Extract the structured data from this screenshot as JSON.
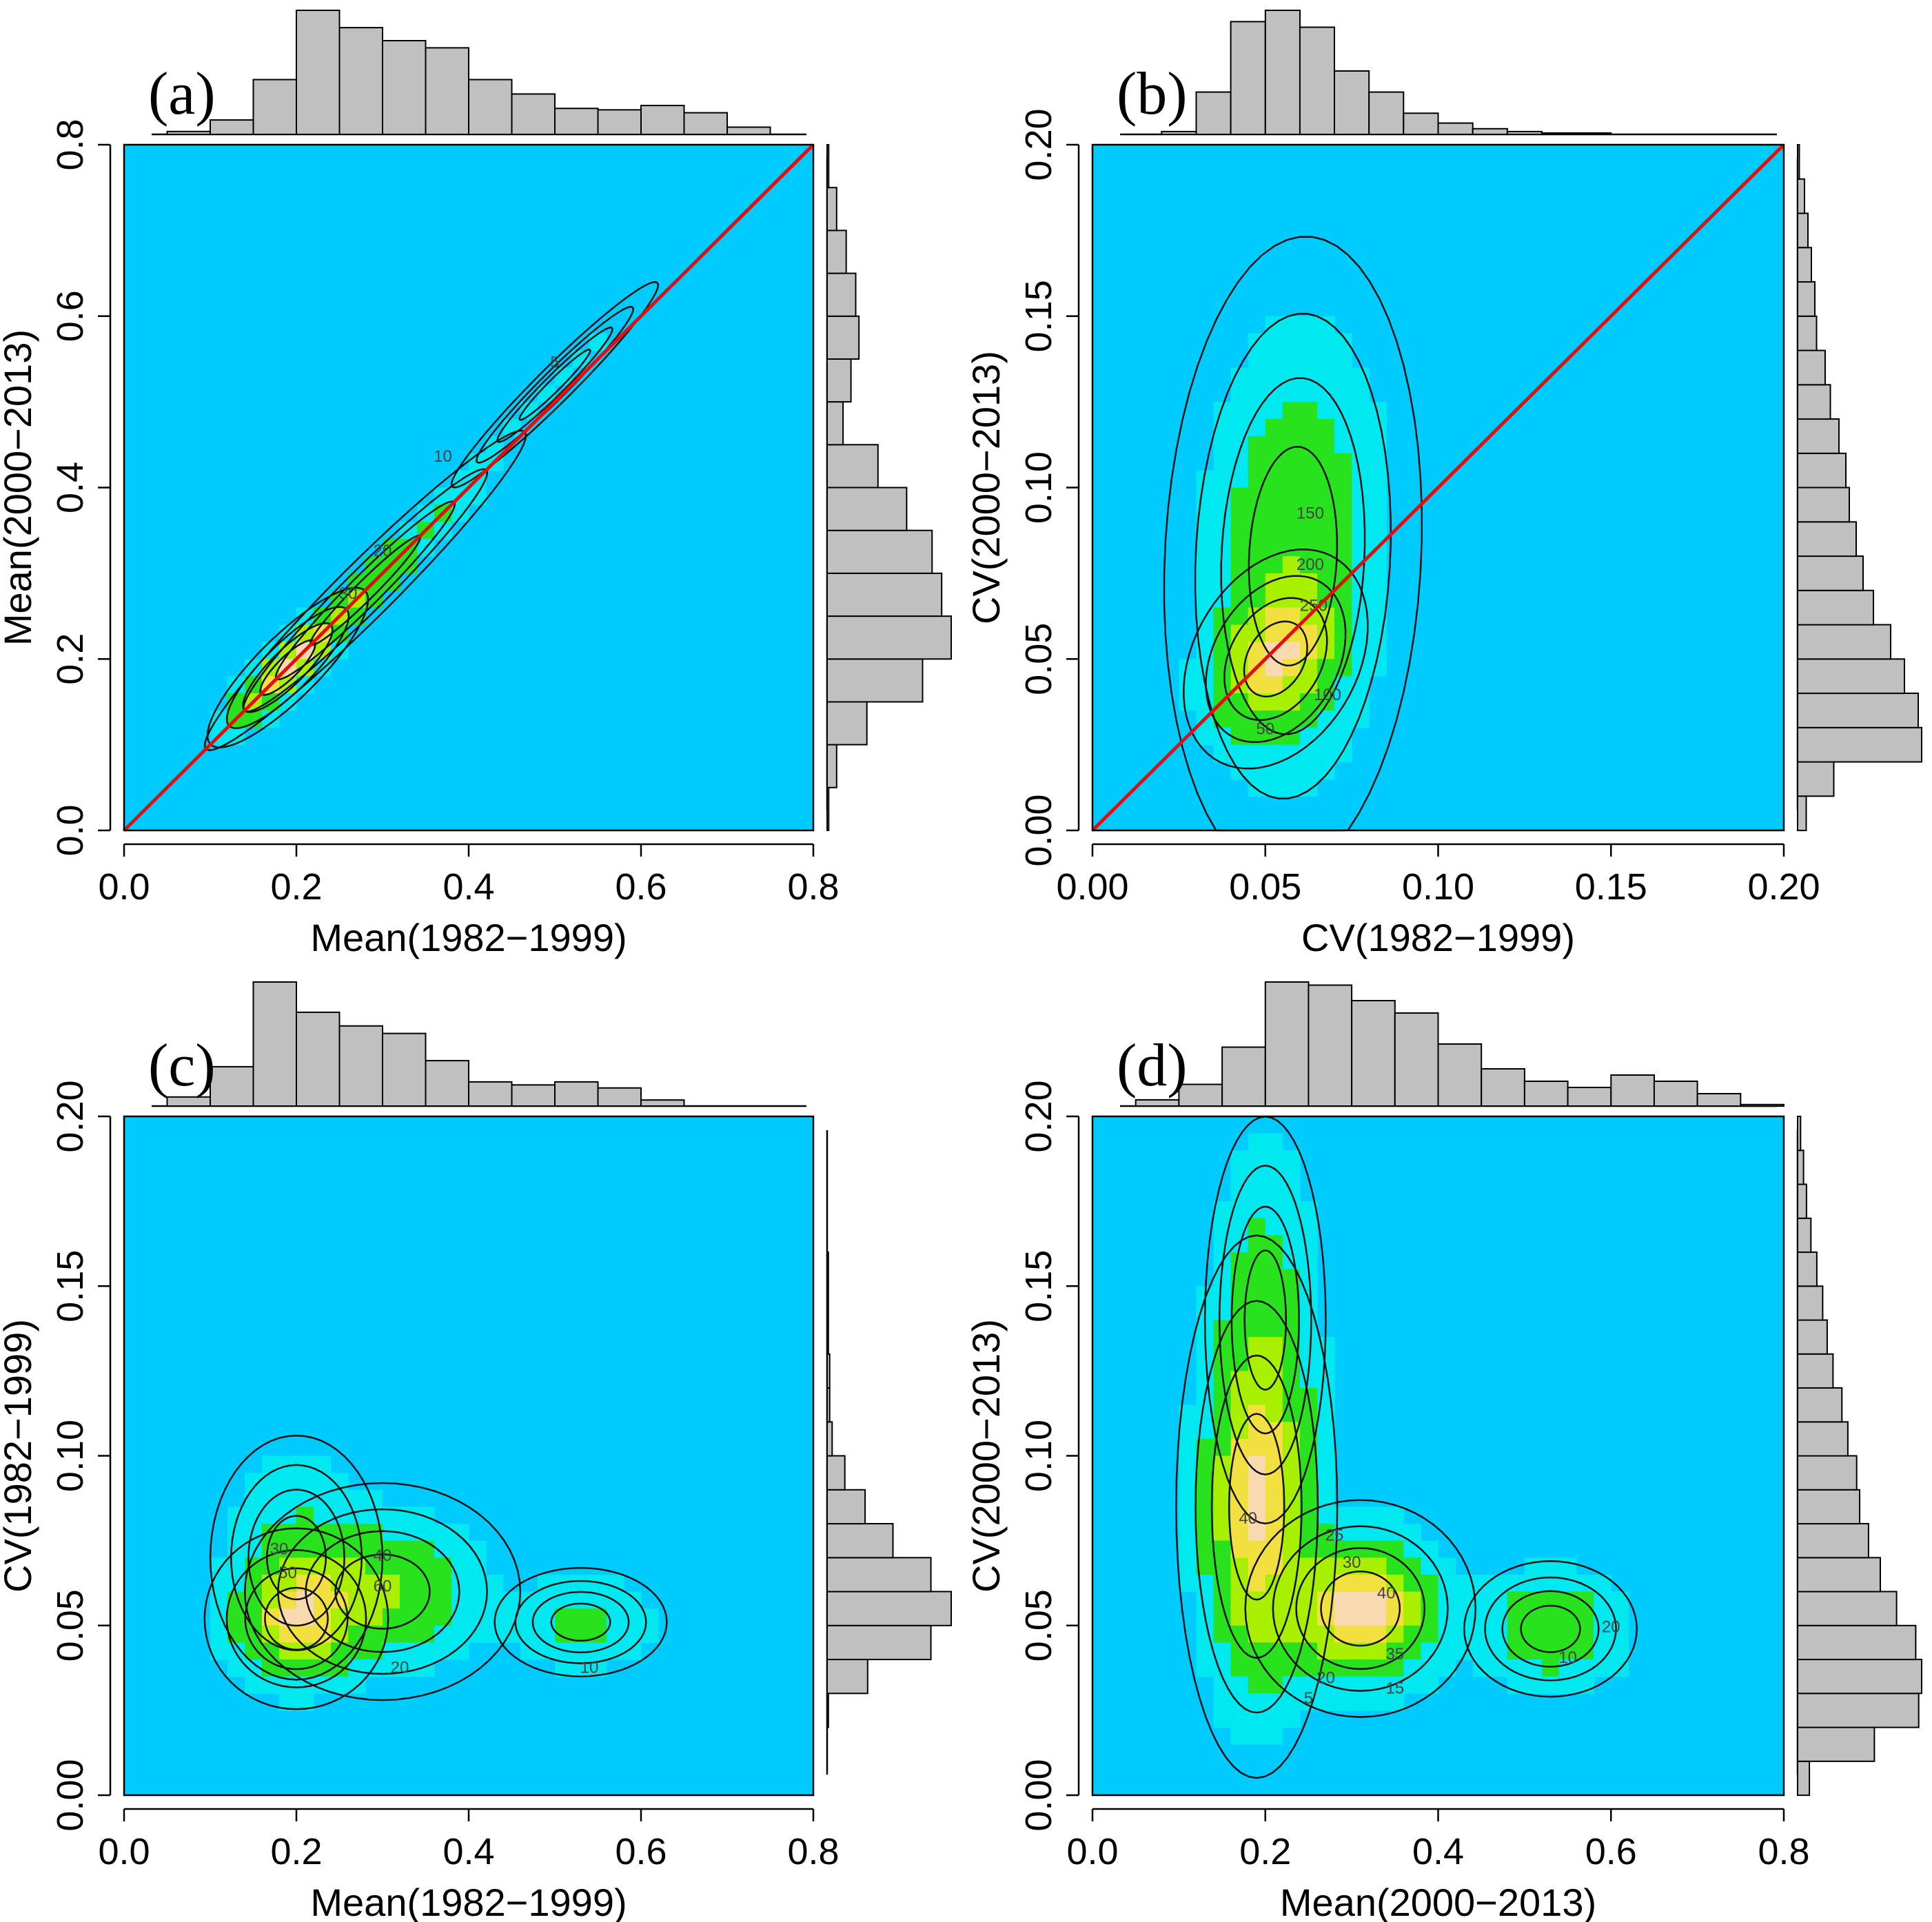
{
  "figure": {
    "description_colors": {
      "background_field": "#00cbff",
      "low_density": "#00e8f0",
      "mid_density": "#28e21e",
      "mid_high_density": "#a8f000",
      "high_density": "#f2e040",
      "peak_density": "#f8d9b0",
      "histogram_fill": "#c0c0c0",
      "identity_line": "#e01010"
    }
  },
  "chart_data": [
    {
      "id": "a",
      "type": "heatmap",
      "panel_label": "(a)",
      "xlabel": "Mean(1982−1999)",
      "ylabel": "Mean(2000−2013)",
      "xlim": [
        0,
        0.8
      ],
      "ylim": [
        0,
        0.8
      ],
      "xticks": [
        0.0,
        0.2,
        0.4,
        0.6,
        0.8
      ],
      "yticks": [
        0.0,
        0.2,
        0.4,
        0.6,
        0.8
      ],
      "xtick_labels": [
        "0.0",
        "0.2",
        "0.4",
        "0.6",
        "0.8"
      ],
      "ytick_labels": [
        "0.0",
        "0.2",
        "0.4",
        "0.6",
        "0.8"
      ],
      "identity_line": true,
      "density_field": {
        "comment": "ridge density approximated along the 1:1 line",
        "components": [
          {
            "cx": 0.19,
            "cy": 0.19,
            "sx": 0.035,
            "sy": 0.035,
            "corr": 0.85,
            "weight": 1.0
          },
          {
            "cx": 0.28,
            "cy": 0.28,
            "sx": 0.07,
            "sy": 0.07,
            "corr": 0.97,
            "weight": 0.55
          },
          {
            "cx": 0.5,
            "cy": 0.52,
            "sx": 0.06,
            "sy": 0.06,
            "corr": 0.97,
            "weight": 0.12
          }
        ]
      },
      "contour_labels": [
        {
          "x": 0.5,
          "y": 0.54,
          "text": "5"
        },
        {
          "x": 0.37,
          "y": 0.43,
          "text": "10"
        },
        {
          "x": 0.3,
          "y": 0.32,
          "text": "20"
        },
        {
          "x": 0.26,
          "y": 0.27,
          "text": "30"
        }
      ],
      "top_histogram": {
        "bin_edges": [
          0.0,
          0.05,
          0.1,
          0.15,
          0.2,
          0.25,
          0.3,
          0.35,
          0.4,
          0.45,
          0.5,
          0.55,
          0.6,
          0.65,
          0.7,
          0.75,
          0.8
        ],
        "counts": [
          0,
          2,
          10,
          38,
          86,
          74,
          65,
          60,
          38,
          28,
          18,
          17,
          20,
          15,
          5,
          0
        ]
      },
      "right_histogram": {
        "bin_edges": [
          0.0,
          0.05,
          0.1,
          0.15,
          0.2,
          0.25,
          0.3,
          0.35,
          0.4,
          0.45,
          0.5,
          0.55,
          0.6,
          0.65,
          0.7,
          0.75,
          0.8
        ],
        "counts": [
          1,
          6,
          25,
          60,
          78,
          72,
          66,
          50,
          32,
          10,
          15,
          20,
          18,
          12,
          6,
          1
        ]
      }
    },
    {
      "id": "b",
      "type": "heatmap",
      "panel_label": "(b)",
      "xlabel": "CV(1982−1999)",
      "ylabel": "CV(2000−2013)",
      "xlim": [
        0,
        0.2
      ],
      "ylim": [
        0,
        0.2
      ],
      "xticks": [
        0.0,
        0.05,
        0.1,
        0.15,
        0.2
      ],
      "yticks": [
        0.0,
        0.05,
        0.1,
        0.15,
        0.2
      ],
      "xtick_labels": [
        "0.00",
        "0.05",
        "0.10",
        "0.15",
        "0.20"
      ],
      "ytick_labels": [
        "0.00",
        "0.05",
        "0.10",
        "0.15",
        "0.20"
      ],
      "identity_line": true,
      "density_field": {
        "components": [
          {
            "cx": 0.053,
            "cy": 0.05,
            "sx": 0.01,
            "sy": 0.012,
            "corr": 0.3,
            "weight": 1.0
          },
          {
            "cx": 0.058,
            "cy": 0.08,
            "sx": 0.014,
            "sy": 0.035,
            "corr": 0.1,
            "weight": 0.55
          }
        ]
      },
      "contour_labels": [
        {
          "x": 0.05,
          "y": 0.028,
          "text": "50"
        },
        {
          "x": 0.068,
          "y": 0.038,
          "text": "100"
        },
        {
          "x": 0.063,
          "y": 0.091,
          "text": "150"
        },
        {
          "x": 0.063,
          "y": 0.076,
          "text": "200"
        },
        {
          "x": 0.064,
          "y": 0.064,
          "text": "250"
        }
      ],
      "top_histogram": {
        "bin_edges": [
          0.0,
          0.01,
          0.02,
          0.03,
          0.04,
          0.05,
          0.06,
          0.07,
          0.08,
          0.09,
          0.1,
          0.11,
          0.12,
          0.13,
          0.14,
          0.15,
          0.16,
          0.17,
          0.18,
          0.19,
          0.2
        ],
        "counts": [
          0,
          0,
          2,
          30,
          80,
          88,
          76,
          45,
          30,
          15,
          8,
          4,
          2,
          1,
          1,
          0,
          0,
          0,
          0,
          0
        ]
      },
      "right_histogram": {
        "bin_edges": [
          0.0,
          0.01,
          0.02,
          0.03,
          0.04,
          0.05,
          0.06,
          0.07,
          0.08,
          0.09,
          0.1,
          0.11,
          0.12,
          0.13,
          0.14,
          0.15,
          0.16,
          0.17,
          0.18,
          0.19,
          0.2
        ],
        "counts": [
          5,
          21,
          72,
          70,
          62,
          54,
          44,
          38,
          34,
          30,
          28,
          24,
          19,
          16,
          11,
          10,
          8,
          6,
          4,
          1
        ]
      }
    },
    {
      "id": "c",
      "type": "heatmap",
      "panel_label": "(c)",
      "xlabel": "Mean(1982−1999)",
      "ylabel": "CV(1982−1999)",
      "xlim": [
        0,
        0.8
      ],
      "ylim": [
        0,
        0.2
      ],
      "xticks": [
        0.0,
        0.2,
        0.4,
        0.6,
        0.8
      ],
      "yticks": [
        0.0,
        0.05,
        0.1,
        0.15,
        0.2
      ],
      "xtick_labels": [
        "0.0",
        "0.2",
        "0.4",
        "0.6",
        "0.8"
      ],
      "ytick_labels": [
        "0.00",
        "0.05",
        "0.10",
        "0.15",
        "0.20"
      ],
      "identity_line": false,
      "density_field": {
        "components": [
          {
            "cx": 0.2,
            "cy": 0.052,
            "sx": 0.04,
            "sy": 0.01,
            "corr": 0.0,
            "weight": 1.0
          },
          {
            "cx": 0.3,
            "cy": 0.06,
            "sx": 0.06,
            "sy": 0.012,
            "corr": 0.0,
            "weight": 0.6
          },
          {
            "cx": 0.53,
            "cy": 0.051,
            "sx": 0.05,
            "sy": 0.008,
            "corr": 0.0,
            "weight": 0.3
          },
          {
            "cx": 0.2,
            "cy": 0.07,
            "sx": 0.05,
            "sy": 0.018,
            "corr": 0.0,
            "weight": 0.25
          }
        ]
      },
      "contour_labels": [
        {
          "x": 0.32,
          "y": 0.036,
          "text": "20"
        },
        {
          "x": 0.18,
          "y": 0.071,
          "text": "30"
        },
        {
          "x": 0.3,
          "y": 0.069,
          "text": "40"
        },
        {
          "x": 0.19,
          "y": 0.064,
          "text": "50"
        },
        {
          "x": 0.3,
          "y": 0.06,
          "text": "60"
        },
        {
          "x": 0.54,
          "y": 0.036,
          "text": "10"
        }
      ],
      "top_histogram": {
        "bin_edges": [
          0.0,
          0.05,
          0.1,
          0.15,
          0.2,
          0.25,
          0.3,
          0.35,
          0.4,
          0.45,
          0.5,
          0.55,
          0.6,
          0.65,
          0.7,
          0.75,
          0.8
        ],
        "counts": [
          0,
          6,
          26,
          82,
          62,
          53,
          48,
          30,
          16,
          14,
          16,
          12,
          4,
          0,
          0,
          0
        ]
      },
      "right_histogram": {
        "bin_edges": [
          0.0,
          0.01,
          0.02,
          0.03,
          0.04,
          0.05,
          0.06,
          0.07,
          0.08,
          0.09,
          0.1,
          0.11,
          0.12,
          0.13,
          0.14,
          0.15,
          0.16,
          0.17,
          0.18,
          0.19,
          0.2
        ],
        "counts": [
          0,
          0,
          1,
          32,
          82,
          98,
          82,
          52,
          30,
          14,
          4,
          2,
          2,
          1,
          1,
          1,
          0,
          0,
          0,
          0
        ]
      }
    },
    {
      "id": "d",
      "type": "heatmap",
      "panel_label": "(d)",
      "xlabel": "Mean(2000−2013)",
      "ylabel": "CV(2000−2013)",
      "xlim": [
        0,
        0.8
      ],
      "ylim": [
        0,
        0.2
      ],
      "xticks": [
        0.0,
        0.2,
        0.4,
        0.6,
        0.8
      ],
      "yticks": [
        0.0,
        0.05,
        0.1,
        0.15,
        0.2
      ],
      "xtick_labels": [
        "0.0",
        "0.2",
        "0.4",
        "0.6",
        "0.8"
      ],
      "ytick_labels": [
        "0.00",
        "0.05",
        "0.10",
        "0.15",
        "0.20"
      ],
      "identity_line": false,
      "density_field": {
        "components": [
          {
            "cx": 0.31,
            "cy": 0.055,
            "sx": 0.05,
            "sy": 0.012,
            "corr": 0.0,
            "weight": 1.0
          },
          {
            "cx": 0.19,
            "cy": 0.085,
            "sx": 0.035,
            "sy": 0.03,
            "corr": 0.0,
            "weight": 0.9
          },
          {
            "cx": 0.53,
            "cy": 0.049,
            "sx": 0.05,
            "sy": 0.01,
            "corr": 0.0,
            "weight": 0.35
          },
          {
            "cx": 0.2,
            "cy": 0.14,
            "sx": 0.035,
            "sy": 0.03,
            "corr": 0.0,
            "weight": 0.25
          }
        ]
      },
      "contour_labels": [
        {
          "x": 0.25,
          "y": 0.027,
          "text": "5"
        },
        {
          "x": 0.55,
          "y": 0.039,
          "text": "10"
        },
        {
          "x": 0.35,
          "y": 0.03,
          "text": "15"
        },
        {
          "x": 0.27,
          "y": 0.033,
          "text": "20"
        },
        {
          "x": 0.28,
          "y": 0.075,
          "text": "25"
        },
        {
          "x": 0.3,
          "y": 0.067,
          "text": "30"
        },
        {
          "x": 0.18,
          "y": 0.08,
          "text": "40"
        },
        {
          "x": 0.34,
          "y": 0.058,
          "text": "40"
        },
        {
          "x": 0.35,
          "y": 0.04,
          "text": "35"
        },
        {
          "x": 0.6,
          "y": 0.048,
          "text": "20"
        }
      ],
      "top_histogram": {
        "bin_edges": [
          0.0,
          0.05,
          0.1,
          0.15,
          0.2,
          0.25,
          0.3,
          0.35,
          0.4,
          0.45,
          0.5,
          0.55,
          0.6,
          0.65,
          0.7,
          0.75,
          0.8
        ],
        "counts": [
          0,
          4,
          14,
          38,
          80,
          78,
          68,
          60,
          40,
          24,
          16,
          12,
          20,
          16,
          8,
          1
        ]
      },
      "right_histogram": {
        "bin_edges": [
          0.0,
          0.01,
          0.02,
          0.03,
          0.04,
          0.05,
          0.06,
          0.07,
          0.08,
          0.09,
          0.1,
          0.11,
          0.12,
          0.13,
          0.14,
          0.15,
          0.16,
          0.17,
          0.18,
          0.19,
          0.2
        ],
        "counts": [
          8,
          52,
          82,
          84,
          80,
          67,
          56,
          48,
          42,
          40,
          34,
          30,
          24,
          20,
          17,
          13,
          9,
          6,
          4,
          2
        ]
      }
    }
  ]
}
